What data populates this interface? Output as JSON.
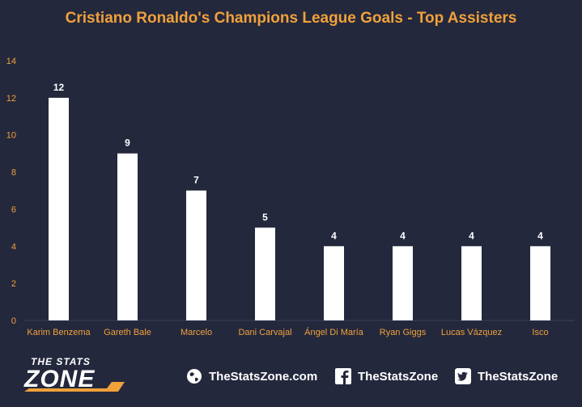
{
  "chart_data": {
    "type": "bar",
    "title": "Cristiano Ronaldo's Champions League Goals - Top Assisters",
    "xlabel": "",
    "ylabel": "",
    "categories": [
      "Karim Benzema",
      "Gareth Bale",
      "Marcelo",
      "Dani Carvajal",
      "Ángel Di María",
      "Ryan Giggs",
      "Lucas Vázquez",
      "Isco"
    ],
    "values": [
      12,
      9,
      7,
      5,
      4,
      4,
      4,
      4
    ],
    "ylim": [
      0,
      14
    ],
    "yticks": [
      0,
      2,
      4,
      6,
      8,
      10,
      12,
      14
    ],
    "grid": false,
    "data_labels": true,
    "colors": {
      "background": "#24283d",
      "bar": "#ffffff",
      "title": "#f0a13a",
      "tick_label": "#f0a13a",
      "data_label": "#ffffff"
    }
  },
  "footer": {
    "logo_top": "THE STATS",
    "logo_bottom": "ZONE",
    "website": "TheStatsZone.com",
    "facebook": "TheStatsZone",
    "twitter": "TheStatsZone",
    "icons": [
      "globe-icon",
      "facebook-icon",
      "twitter-icon"
    ]
  }
}
